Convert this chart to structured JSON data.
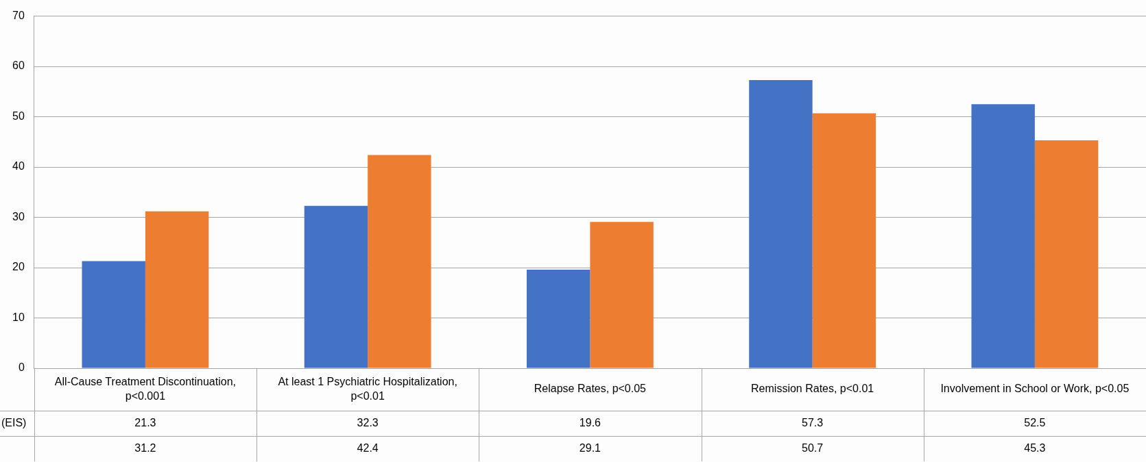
{
  "chart_data": {
    "type": "bar",
    "categories": [
      "All-Cause Treatment Discontinuation, p<0.001",
      "At least 1 Psychiatric Hospitalization, p<0.01",
      "Relapse Rates, p<0.05",
      "Remission Rates, p<0.01",
      "Involvement in School or Work, p<0.05"
    ],
    "series": [
      {
        "name": "(EIS)",
        "color": "#4472c4",
        "values": [
          21.3,
          32.3,
          19.6,
          57.3,
          52.5
        ]
      },
      {
        "color": "#ed7d31",
        "values": [
          31.2,
          42.4,
          29.1,
          50.7,
          45.3
        ]
      }
    ],
    "ylim": [
      0,
      70
    ],
    "yticks": [
      0,
      10,
      20,
      30,
      40,
      50,
      60,
      70
    ],
    "grid": "y",
    "legend": false,
    "data_labels": true
  }
}
